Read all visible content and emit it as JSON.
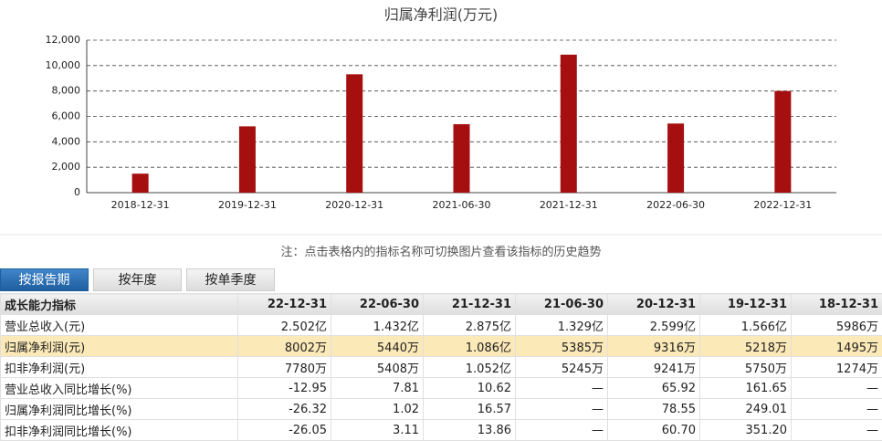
{
  "chart_data": {
    "type": "bar",
    "title": "归属净利润(万元)",
    "categories": [
      "2018-12-31",
      "2019-12-31",
      "2020-12-31",
      "2021-06-30",
      "2021-12-31",
      "2022-06-30",
      "2022-12-31"
    ],
    "values": [
      1495,
      5218,
      9316,
      5385,
      10860,
      5440,
      8002
    ],
    "color": "#a50f0f",
    "ylim": [
      0,
      12000
    ],
    "yticks": [
      0,
      {
        "value": 2000,
        "label": "2,000"
      },
      {
        "value": 4000,
        "label": "4,000"
      },
      {
        "value": 6000,
        "label": "6,000"
      },
      {
        "value": 8000,
        "label": "8,000"
      },
      {
        "value": 10000,
        "label": "10,000"
      },
      {
        "value": 12000,
        "label": "12,000"
      }
    ],
    "grid": true
  },
  "note": "注：点击表格内的指标名称可切换图片查看该指标的历史趋势",
  "tabs": [
    "按报告期",
    "按年度",
    "按单季度"
  ],
  "table": {
    "header": [
      "成长能力指标",
      "22-12-31",
      "22-06-30",
      "21-12-31",
      "21-06-30",
      "20-12-31",
      "19-12-31",
      "18-12-31"
    ],
    "rows": [
      [
        "营业总收入(元)",
        "2.502亿",
        "1.432亿",
        "2.875亿",
        "1.329亿",
        "2.599亿",
        "1.566亿",
        "5986万"
      ],
      [
        "归属净利润(元)",
        "8002万",
        "5440万",
        "1.086亿",
        "5385万",
        "9316万",
        "5218万",
        "1495万"
      ],
      [
        "扣非净利润(元)",
        "7780万",
        "5408万",
        "1.052亿",
        "5245万",
        "9241万",
        "5750万",
        "1274万"
      ],
      [
        "营业总收入同比增长(%)",
        "-12.95",
        "7.81",
        "10.62",
        "—",
        "65.92",
        "161.65",
        "—"
      ],
      [
        "归属净利润同比增长(%)",
        "-26.32",
        "1.02",
        "16.57",
        "—",
        "78.55",
        "249.01",
        "—"
      ],
      [
        "扣非净利润同比增长(%)",
        "-26.05",
        "3.11",
        "13.86",
        "—",
        "60.70",
        "351.20",
        "—"
      ]
    ]
  }
}
